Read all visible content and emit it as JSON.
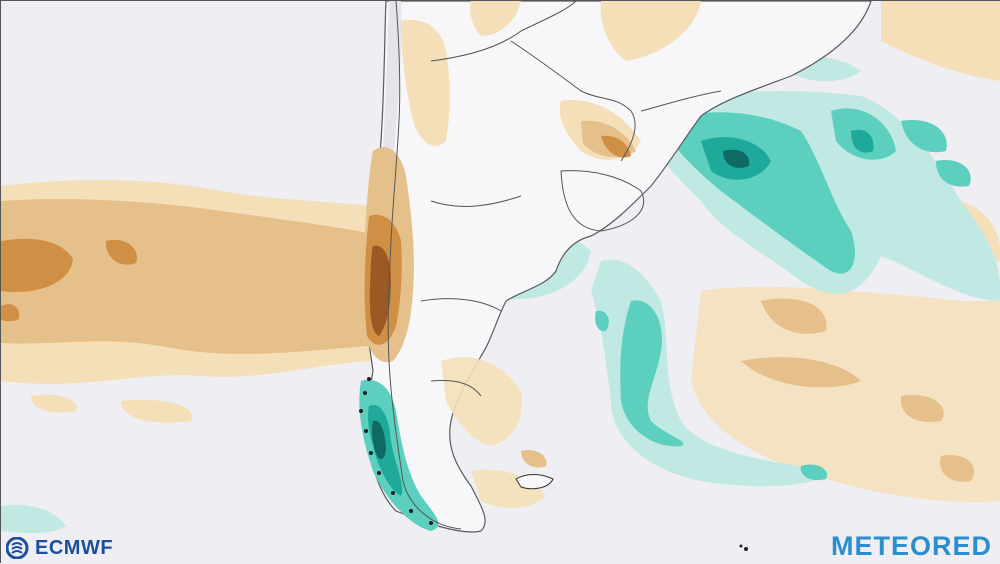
{
  "map": {
    "background_color": "#eeeef3",
    "land_color": "#f7f7f9",
    "border_color": "#5b5b5b",
    "anomaly_colors": {
      "dry_light": "#f4dfb8",
      "dry_medium": "#e6c08a",
      "dry_strong": "#cf8f45",
      "dry_extreme": "#9b5a24",
      "wet_light": "#bfe9e2",
      "wet_medium": "#5ccfbe",
      "wet_strong": "#1fa99a",
      "wet_extreme": "#0e6a63"
    }
  },
  "logos": {
    "left": {
      "text": "ECMWF",
      "color": "#1c4f9c",
      "icon": "ecmwf-logo-icon"
    },
    "right": {
      "text": "METEORED",
      "color": "#2b8fcf"
    }
  }
}
